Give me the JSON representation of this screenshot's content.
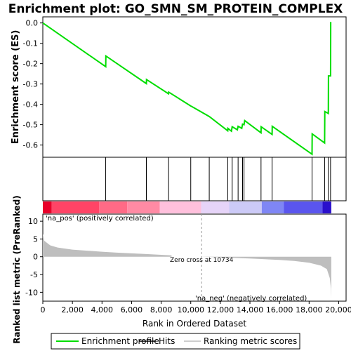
{
  "chart_data": {
    "type": "line",
    "title": "Enrichment plot: GO_SMN_SM_PROTEIN_COMPLEX",
    "es_panel": {
      "ylabel": "Enrichment score (ES)",
      "ylim": [
        -0.66,
        0.03
      ],
      "yticks": [
        0.0,
        -0.1,
        -0.2,
        -0.3,
        -0.4,
        -0.5,
        -0.6
      ],
      "ytick_labels": [
        "0.0",
        "-0.1",
        "-0.2",
        "-0.3",
        "-0.4",
        "-0.5",
        "-0.6"
      ],
      "line_color": "#00dd00",
      "points": [
        [
          0,
          0.0
        ],
        [
          4250,
          -0.215
        ],
        [
          4260,
          -0.162
        ],
        [
          7000,
          -0.298
        ],
        [
          7010,
          -0.278
        ],
        [
          8500,
          -0.348
        ],
        [
          8510,
          -0.34
        ],
        [
          10000,
          -0.408
        ],
        [
          10050,
          -0.41
        ],
        [
          11250,
          -0.46
        ],
        [
          12500,
          -0.53
        ],
        [
          12510,
          -0.518
        ],
        [
          12750,
          -0.532
        ],
        [
          12800,
          -0.51
        ],
        [
          13150,
          -0.525
        ],
        [
          13200,
          -0.508
        ],
        [
          13450,
          -0.518
        ],
        [
          13500,
          -0.497
        ],
        [
          13600,
          -0.5
        ],
        [
          13650,
          -0.48
        ],
        [
          14750,
          -0.54
        ],
        [
          14760,
          -0.51
        ],
        [
          15500,
          -0.548
        ],
        [
          15510,
          -0.508
        ],
        [
          18200,
          -0.645
        ],
        [
          18210,
          -0.545
        ],
        [
          19050,
          -0.59
        ],
        [
          19060,
          -0.435
        ],
        [
          19300,
          -0.445
        ],
        [
          19310,
          -0.26
        ],
        [
          19450,
          -0.26
        ],
        [
          19460,
          0.005
        ]
      ]
    },
    "hits": [
      4250,
      7000,
      8500,
      10000,
      11250,
      12500,
      12800,
      13200,
      13500,
      13600,
      14750,
      15500,
      18200,
      19050,
      19300,
      19450
    ],
    "rank_panel": {
      "ylabel": "Ranked list metric (PreRanked)",
      "ylim": [
        -12.5,
        12
      ],
      "yticks": [
        10,
        5,
        0,
        -5,
        -10
      ],
      "ytick_labels": [
        "10",
        "5",
        "0",
        "-5",
        "-10"
      ],
      "fill_color": "#bebebe",
      "curve": [
        [
          0,
          6.5
        ],
        [
          100,
          4.5
        ],
        [
          500,
          3.2
        ],
        [
          1000,
          2.6
        ],
        [
          2000,
          2.0
        ],
        [
          3000,
          1.7
        ],
        [
          4000,
          1.4
        ],
        [
          5000,
          1.15
        ],
        [
          6000,
          0.95
        ],
        [
          7000,
          0.75
        ],
        [
          8000,
          0.55
        ],
        [
          8700,
          0.4
        ],
        [
          8710,
          0.0
        ],
        [
          10734,
          0.0
        ],
        [
          11500,
          -0.1
        ],
        [
          12500,
          -0.25
        ],
        [
          14000,
          -0.5
        ],
        [
          15000,
          -0.7
        ],
        [
          16000,
          -0.9
        ],
        [
          17000,
          -1.2
        ],
        [
          18000,
          -1.7
        ],
        [
          18800,
          -2.5
        ],
        [
          19200,
          -3.5
        ],
        [
          19400,
          -6.0
        ],
        [
          19480,
          -9.0
        ],
        [
          19500,
          -11.8
        ]
      ],
      "zero_cross_rank": 10734,
      "zero_cross_label": "Zero cross at 10734",
      "pos_label": "'na_pos' (positively correlated)",
      "neg_label": "'na_neg' (negatively correlated)",
      "pos_label_color": "#d40000",
      "neg_label_color": "#3333cc"
    },
    "x_axis": {
      "xlabel": "Rank in Ordered Dataset",
      "xlim": [
        0,
        20500
      ],
      "xticks": [
        0,
        2000,
        4000,
        6000,
        8000,
        10000,
        12000,
        14000,
        16000,
        18000,
        20000
      ],
      "xtick_labels": [
        "0",
        "2,000",
        "4,000",
        "6,000",
        "8,000",
        "10,000",
        "12,000",
        "14,000",
        "16,000",
        "18,000",
        "20,000"
      ]
    },
    "colorbar": {
      "max_rank": 19500,
      "segments": [
        {
          "end": 600,
          "color": "#e8002a"
        },
        {
          "end": 3800,
          "color": "#ff4466"
        },
        {
          "end": 5700,
          "color": "#ff6a86"
        },
        {
          "end": 7900,
          "color": "#ff8aa4"
        },
        {
          "end": 10700,
          "color": "#ffc0dc"
        },
        {
          "end": 12600,
          "color": "#e6d4f8"
        },
        {
          "end": 14800,
          "color": "#cccaf7"
        },
        {
          "end": 16300,
          "color": "#7f86f5"
        },
        {
          "end": 18900,
          "color": "#5a55ee"
        },
        {
          "end": 19500,
          "color": "#2a10cc"
        }
      ]
    },
    "legend": {
      "placement": "bottom",
      "items": [
        {
          "label": "Enrichment profile",
          "color": "#00dd00",
          "kind": "line"
        },
        {
          "label": "Hits",
          "color": "#000000",
          "kind": "line"
        },
        {
          "label": "Ranking metric scores",
          "color": "#bebebe",
          "kind": "line"
        }
      ]
    }
  }
}
